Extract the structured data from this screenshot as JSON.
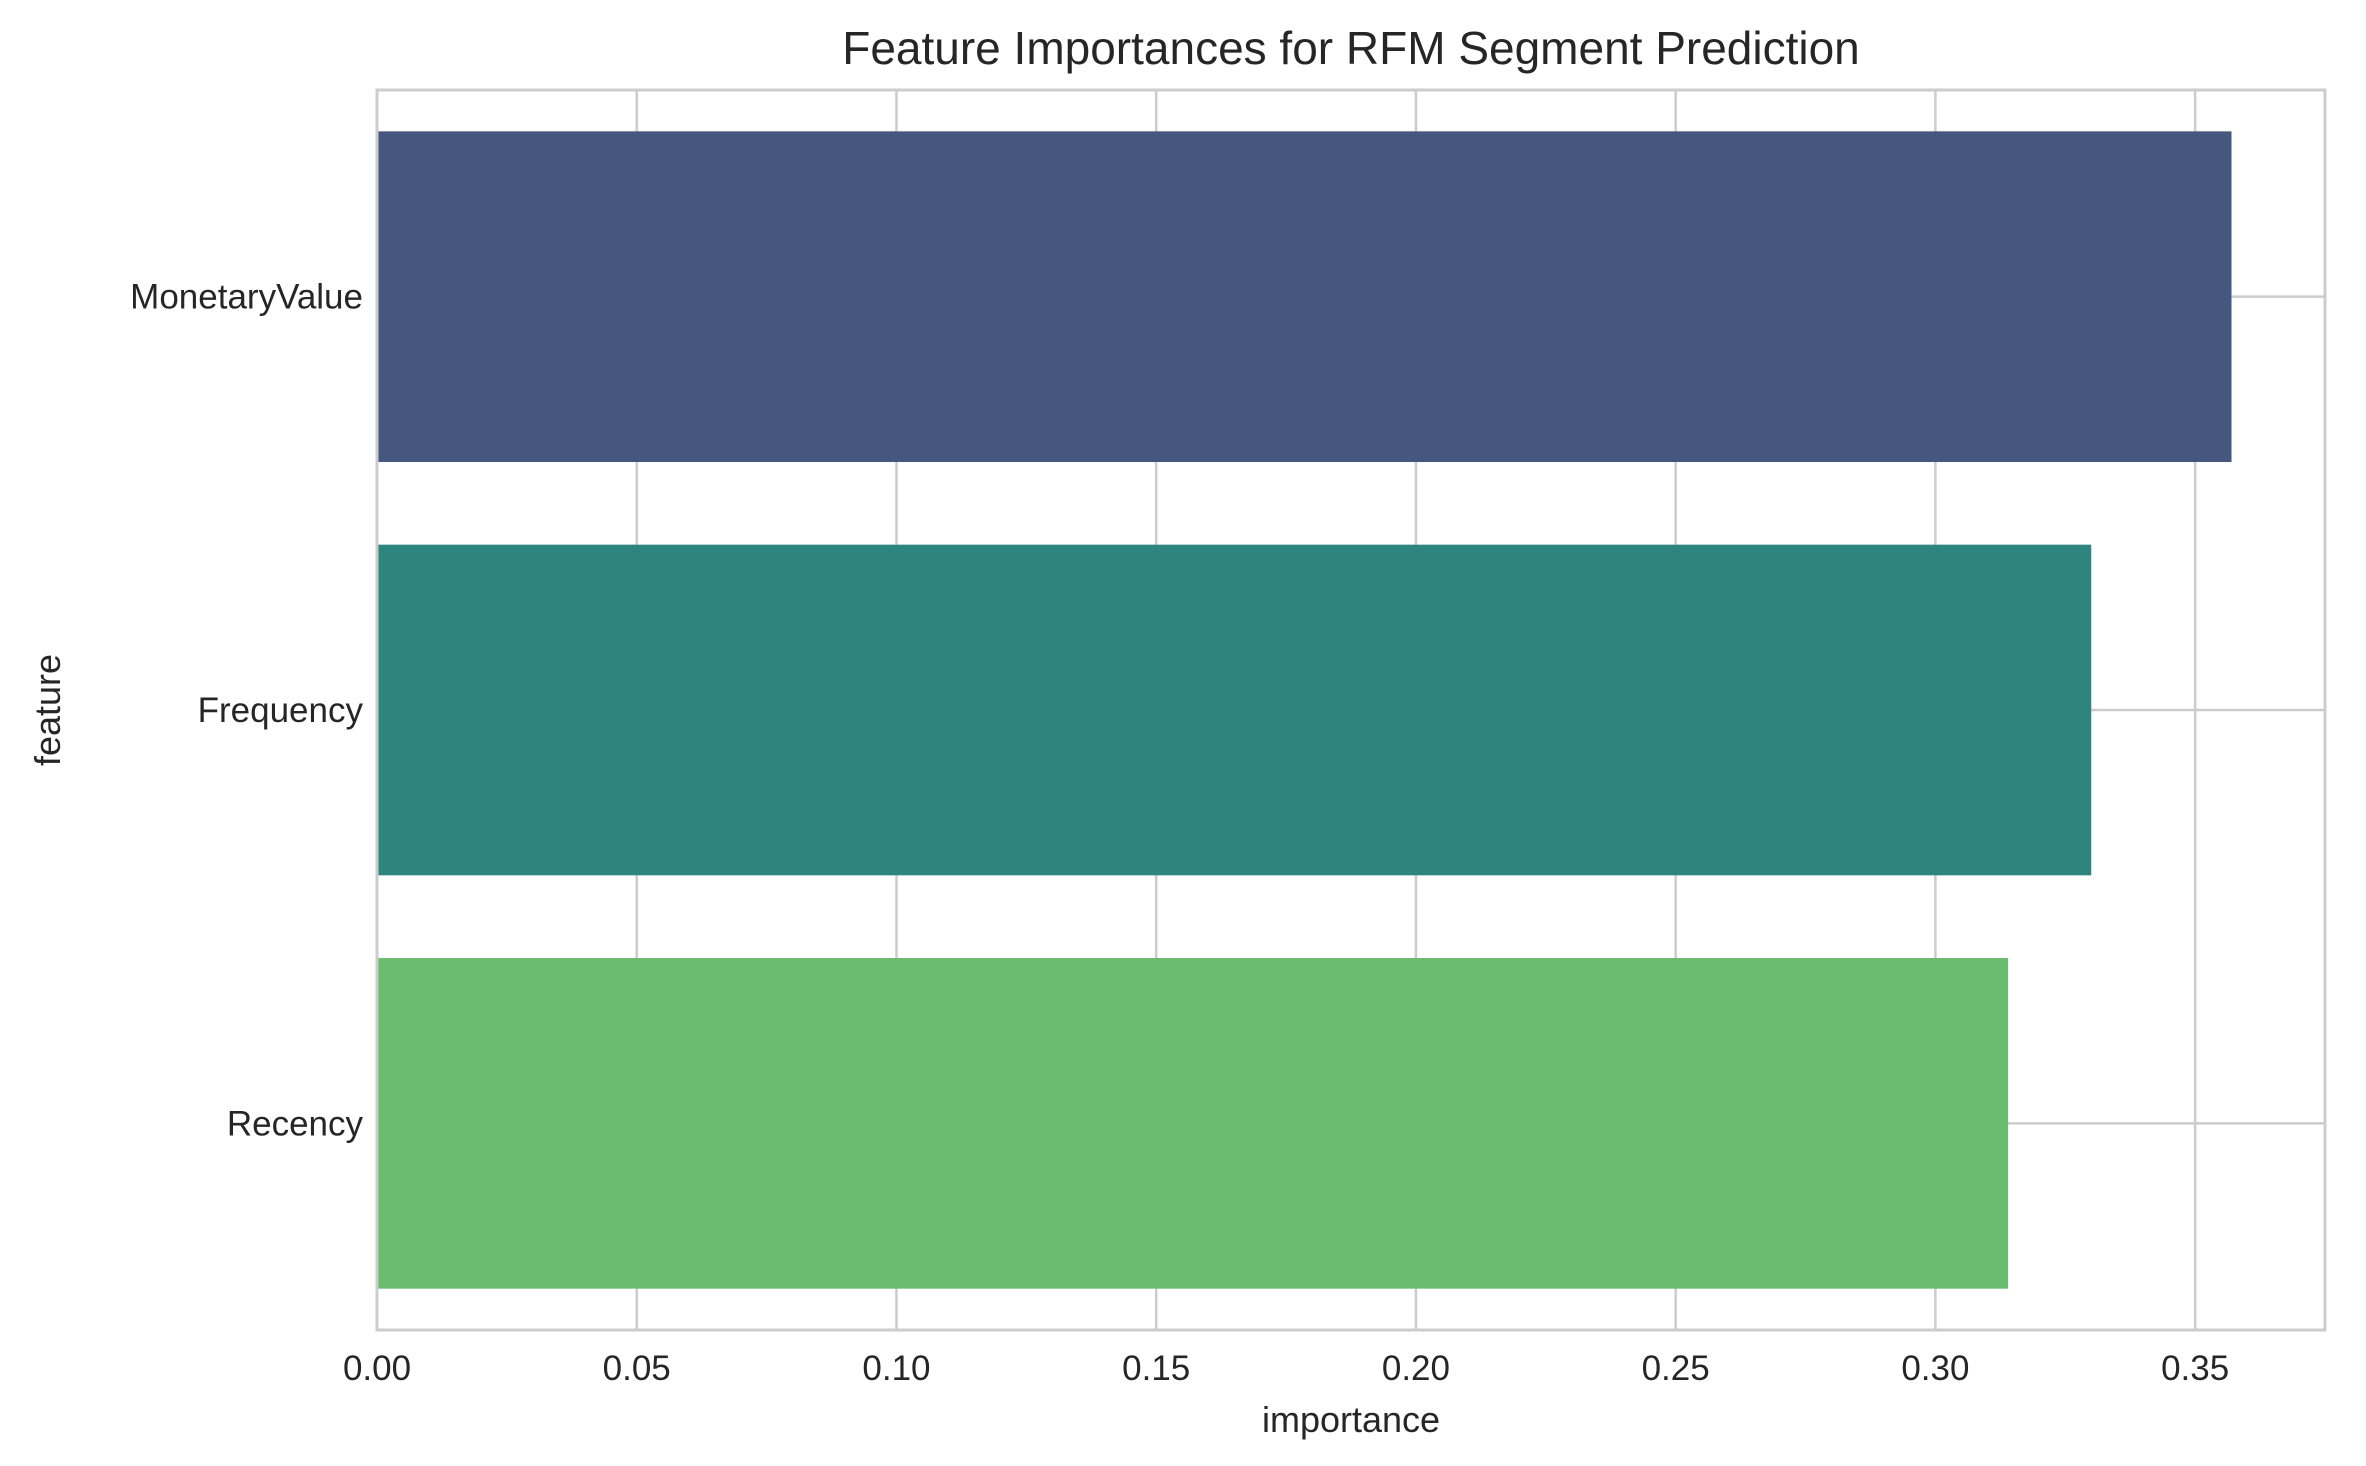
{
  "chart_data": {
    "type": "bar",
    "orientation": "horizontal",
    "title": "Feature Importances for RFM Segment Prediction",
    "xlabel": "importance",
    "ylabel": "feature",
    "categories": [
      "MonetaryValue",
      "Frequency",
      "Recency"
    ],
    "values": [
      0.357,
      0.33,
      0.314
    ],
    "colors": [
      "#46577f",
      "#2e857e",
      "#6bbc6e"
    ],
    "xlim": [
      0,
      0.375
    ],
    "xticks": [
      0.0,
      0.05,
      0.1,
      0.15,
      0.2,
      0.25,
      0.3,
      0.35
    ],
    "xtick_labels": [
      "0.00",
      "0.05",
      "0.10",
      "0.15",
      "0.20",
      "0.25",
      "0.30",
      "0.35"
    ],
    "grid": true,
    "legend": "none"
  }
}
